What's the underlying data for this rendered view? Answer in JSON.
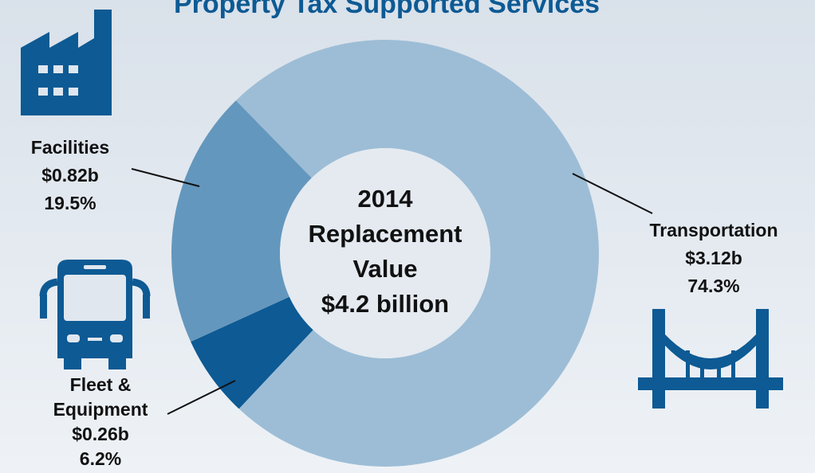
{
  "chart_data": {
    "type": "pie",
    "title": "Property Tax Supported Services",
    "center_text": [
      "2014",
      "Replacement",
      "Value",
      "$4.2 billion"
    ],
    "categories": [
      "Transportation",
      "Fleet & Equipment",
      "Facilities"
    ],
    "values": [
      74.3,
      6.2,
      19.5
    ],
    "value_labels": [
      "74.3%",
      "6.2%",
      "19.5%"
    ],
    "amounts": [
      3.12,
      0.26,
      0.82
    ],
    "amount_labels": [
      "$3.12b",
      "$0.26b",
      "$0.82b"
    ],
    "colors": [
      "#9dbdd6",
      "#0d5a94",
      "#6497bd"
    ]
  }
}
